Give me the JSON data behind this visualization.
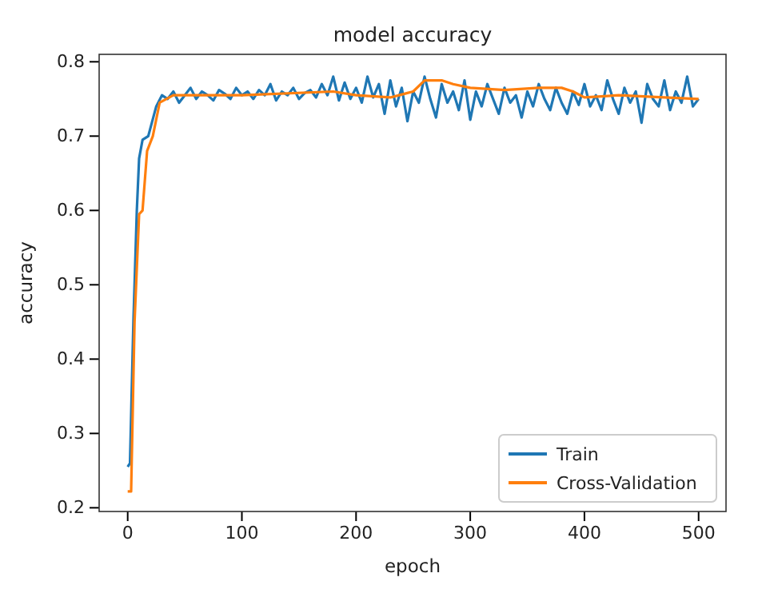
{
  "chart_data": {
    "type": "line",
    "title": "model accuracy",
    "xlabel": "epoch",
    "ylabel": "accuracy",
    "xlim": [
      -25,
      524
    ],
    "ylim": [
      0.195,
      0.81
    ],
    "xticks": [
      0,
      100,
      200,
      300,
      400,
      500
    ],
    "yticks": [
      0.2,
      0.3,
      0.4,
      0.5,
      0.6,
      0.7,
      0.8
    ],
    "legend": "bottom right",
    "grid": false,
    "series": [
      {
        "name": "Train",
        "color": "#1f77b4",
        "x": [
          0,
          2,
          5,
          8,
          10,
          13,
          18,
          25,
          30,
          35,
          40,
          45,
          50,
          55,
          60,
          65,
          70,
          75,
          80,
          85,
          90,
          95,
          100,
          105,
          110,
          115,
          120,
          125,
          130,
          135,
          140,
          145,
          150,
          155,
          160,
          165,
          170,
          175,
          180,
          185,
          190,
          195,
          200,
          205,
          210,
          215,
          220,
          225,
          230,
          235,
          240,
          245,
          250,
          255,
          260,
          265,
          270,
          275,
          280,
          285,
          290,
          295,
          300,
          305,
          310,
          315,
          320,
          325,
          330,
          335,
          340,
          345,
          350,
          355,
          360,
          365,
          370,
          375,
          380,
          385,
          390,
          395,
          400,
          405,
          410,
          415,
          420,
          425,
          430,
          435,
          440,
          445,
          450,
          455,
          460,
          465,
          470,
          475,
          480,
          485,
          490,
          495,
          500
        ],
        "values": [
          0.255,
          0.26,
          0.45,
          0.6,
          0.67,
          0.695,
          0.7,
          0.74,
          0.755,
          0.75,
          0.76,
          0.745,
          0.755,
          0.765,
          0.75,
          0.76,
          0.755,
          0.748,
          0.762,
          0.757,
          0.75,
          0.765,
          0.755,
          0.76,
          0.75,
          0.762,
          0.755,
          0.77,
          0.748,
          0.76,
          0.755,
          0.765,
          0.75,
          0.758,
          0.762,
          0.752,
          0.77,
          0.755,
          0.78,
          0.748,
          0.772,
          0.75,
          0.765,
          0.745,
          0.78,
          0.752,
          0.77,
          0.73,
          0.775,
          0.74,
          0.765,
          0.72,
          0.76,
          0.745,
          0.78,
          0.75,
          0.725,
          0.77,
          0.745,
          0.76,
          0.735,
          0.775,
          0.722,
          0.76,
          0.74,
          0.77,
          0.75,
          0.73,
          0.765,
          0.745,
          0.755,
          0.725,
          0.76,
          0.74,
          0.77,
          0.75,
          0.735,
          0.765,
          0.745,
          0.73,
          0.76,
          0.742,
          0.77,
          0.74,
          0.755,
          0.735,
          0.775,
          0.75,
          0.73,
          0.765,
          0.745,
          0.76,
          0.718,
          0.77,
          0.75,
          0.74,
          0.775,
          0.735,
          0.76,
          0.745,
          0.78,
          0.74,
          0.75
        ]
      },
      {
        "name": "Cross-Validation",
        "color": "#ff7f0e",
        "x": [
          0,
          3,
          6,
          10,
          13,
          17,
          22,
          28,
          40,
          100,
          180,
          200,
          230,
          250,
          260,
          275,
          285,
          300,
          330,
          360,
          380,
          390,
          400,
          430,
          470,
          500
        ],
        "values": [
          0.222,
          0.222,
          0.45,
          0.595,
          0.6,
          0.68,
          0.7,
          0.745,
          0.755,
          0.755,
          0.76,
          0.755,
          0.752,
          0.76,
          0.775,
          0.775,
          0.77,
          0.765,
          0.762,
          0.765,
          0.765,
          0.76,
          0.752,
          0.755,
          0.752,
          0.75
        ]
      }
    ]
  }
}
